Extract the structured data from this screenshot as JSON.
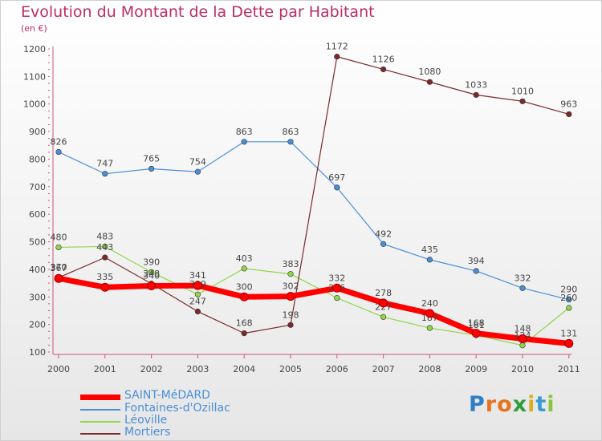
{
  "header": {
    "title": "Evolution du Montant de la Dette par Habitant",
    "subtitle": "(en €)"
  },
  "colors": {
    "title": "#bb2d68",
    "saint_medard": "#ff0000",
    "fontaines": "#4a8fd6",
    "leoville": "#8fd64a",
    "mortiers": "#7a2a2a"
  },
  "chart_data": {
    "type": "line",
    "title": "Evolution du Montant de la Dette par Habitant",
    "subtitle": "(en €)",
    "categories": [
      "2000",
      "2001",
      "2002",
      "2003",
      "2004",
      "2005",
      "2006",
      "2007",
      "2008",
      "2009",
      "2010",
      "2011"
    ],
    "ylim": [
      100,
      1200
    ],
    "yticks": [
      100,
      200,
      300,
      400,
      500,
      600,
      700,
      800,
      900,
      1000,
      1100,
      1200
    ],
    "grid": false,
    "legend": "bottom-left",
    "series": [
      {
        "name": "SAINT-MéDARD",
        "color": "#ff0000",
        "values": [
          367,
          335,
          340,
          341,
          300,
          302,
          332,
          278,
          240,
          168,
          148,
          131
        ]
      },
      {
        "name": "Fontaines-d'Ozillac",
        "color": "#4a8fd6",
        "values": [
          826,
          747,
          765,
          754,
          863,
          863,
          697,
          492,
          435,
          394,
          332,
          290
        ]
      },
      {
        "name": "Léoville",
        "color": "#8fd64a",
        "values": [
          480,
          483,
          390,
          309,
          403,
          383,
          296,
          227,
          187,
          161,
          124,
          260
        ]
      },
      {
        "name": "Mortiers",
        "color": "#7a2a2a",
        "values": [
          370,
          443,
          348,
          247,
          168,
          198,
          1172,
          1126,
          1080,
          1033,
          1010,
          963
        ]
      }
    ]
  },
  "logo": {
    "letters": [
      "P",
      "r",
      "o",
      "x",
      "i",
      "t",
      "i"
    ],
    "colors": [
      "#2f7fc7",
      "#e8731e",
      "#e8731e",
      "#2f9e3a",
      "#d6b021",
      "#3a9ad6",
      "#8bc53f"
    ]
  }
}
